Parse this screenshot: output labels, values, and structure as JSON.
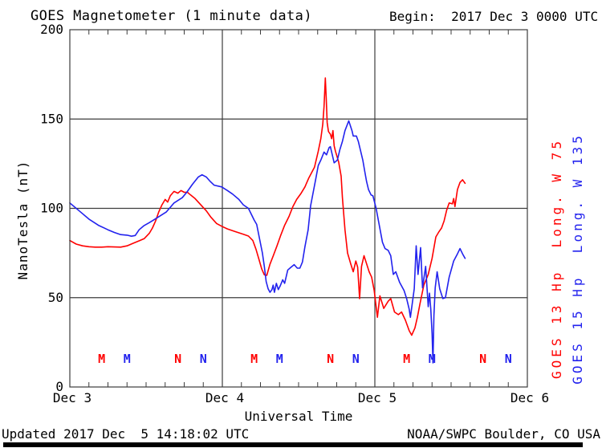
{
  "title": "GOES Magnetometer (1 minute data)",
  "begin_label": "Begin:  2017 Dec 3 0000 UTC",
  "footer": {
    "updated": "Updated 2017 Dec  5 14:18:02 UTC",
    "source": "NOAA/SWPC Boulder, CO USA"
  },
  "right_labels": [
    {
      "text": "GOES 13 Hp  Long. W 75",
      "color": "#ff0000"
    },
    {
      "text": "GOES 15 Hp  Long. W 135",
      "color": "#2222ee"
    }
  ],
  "colors": {
    "goes13": "#ff0000",
    "goes15": "#2222ee",
    "grid": "#3c3c3c",
    "text": "#000000",
    "background": "#ffffff"
  },
  "chart_data": {
    "type": "line",
    "title": "GOES Magnetometer (1 minute data)",
    "xlabel": "Universal Time",
    "ylabel": "NanoTesla (nT)",
    "x_unit": "hours since 2017 Dec 3 0000 UTC",
    "xlim": [
      0,
      72
    ],
    "ylim": [
      0,
      200
    ],
    "grid": true,
    "x_ticks": [
      {
        "h": 0,
        "label": "Dec 3"
      },
      {
        "h": 24,
        "label": "Dec 4"
      },
      {
        "h": 48,
        "label": "Dec 5"
      },
      {
        "h": 72,
        "label": "Dec 6"
      }
    ],
    "y_ticks": [
      0,
      50,
      100,
      150,
      200
    ],
    "minor_tick_hours": 3,
    "legend_position": "right-rotated",
    "series": [
      {
        "name": "GOES 13 Hp",
        "longitude": "W 75",
        "color": "#ff0000",
        "points": [
          [
            0,
            82
          ],
          [
            1,
            80
          ],
          [
            2,
            79
          ],
          [
            3,
            78.5
          ],
          [
            4,
            78.3
          ],
          [
            5,
            78.3
          ],
          [
            6,
            78.5
          ],
          [
            7,
            78.4
          ],
          [
            8,
            78.3
          ],
          [
            9,
            79
          ],
          [
            10,
            80.5
          ],
          [
            11,
            82
          ],
          [
            11.7,
            83
          ],
          [
            12.5,
            86
          ],
          [
            13,
            89
          ],
          [
            13.5,
            93
          ],
          [
            14,
            98
          ],
          [
            14.5,
            102
          ],
          [
            15,
            105
          ],
          [
            15.4,
            103.5
          ],
          [
            15.8,
            107
          ],
          [
            16.4,
            109.5
          ],
          [
            17,
            108.5
          ],
          [
            17.5,
            110
          ],
          [
            18,
            109
          ],
          [
            18.5,
            109
          ],
          [
            19,
            107.5
          ],
          [
            19.7,
            105.5
          ],
          [
            20.6,
            102
          ],
          [
            21.5,
            98.5
          ],
          [
            22.2,
            95
          ],
          [
            23.1,
            91.5
          ],
          [
            23.9,
            90
          ],
          [
            24.8,
            88.5
          ],
          [
            26,
            87
          ],
          [
            27.3,
            85.5
          ],
          [
            28.1,
            84.5
          ],
          [
            28.8,
            82
          ],
          [
            29.3,
            77
          ],
          [
            29.8,
            71
          ],
          [
            30.2,
            66
          ],
          [
            30.6,
            62.8
          ],
          [
            31,
            62.5
          ],
          [
            31.5,
            68.8
          ],
          [
            32,
            73.3
          ],
          [
            32.6,
            79
          ],
          [
            33.2,
            85
          ],
          [
            33.8,
            90.5
          ],
          [
            34.5,
            95.5
          ],
          [
            35.1,
            101
          ],
          [
            35.7,
            105
          ],
          [
            36.4,
            108.5
          ],
          [
            37,
            112
          ],
          [
            37.6,
            117
          ],
          [
            38.5,
            123
          ],
          [
            39.1,
            132
          ],
          [
            39.5,
            139
          ],
          [
            39.8,
            147
          ],
          [
            40,
            157
          ],
          [
            40.2,
            173
          ],
          [
            40.35,
            162
          ],
          [
            40.5,
            148
          ],
          [
            40.7,
            143
          ],
          [
            41,
            141.5
          ],
          [
            41.2,
            139
          ],
          [
            41.4,
            143.5
          ],
          [
            41.6,
            135
          ],
          [
            41.8,
            132
          ],
          [
            42.3,
            126
          ],
          [
            42.7,
            118
          ],
          [
            42.9,
            106
          ],
          [
            43.3,
            88
          ],
          [
            43.7,
            75
          ],
          [
            44.2,
            69
          ],
          [
            44.6,
            64.5
          ],
          [
            45,
            70.5
          ],
          [
            45.3,
            67
          ],
          [
            45.6,
            49.5
          ],
          [
            45.9,
            67.5
          ],
          [
            46.3,
            73.5
          ],
          [
            46.7,
            69
          ],
          [
            47.1,
            64.5
          ],
          [
            47.5,
            61.5
          ],
          [
            47.9,
            54
          ],
          [
            48.4,
            39
          ],
          [
            48.8,
            51
          ],
          [
            49.4,
            44
          ],
          [
            50.1,
            48
          ],
          [
            50.5,
            49.5
          ],
          [
            51.1,
            42
          ],
          [
            51.7,
            40.5
          ],
          [
            52.2,
            42
          ],
          [
            52.8,
            37.5
          ],
          [
            53.4,
            31.5
          ],
          [
            53.8,
            29
          ],
          [
            54.3,
            33
          ],
          [
            54.7,
            39
          ],
          [
            55.1,
            46.5
          ],
          [
            55.7,
            57
          ],
          [
            56.4,
            63
          ],
          [
            57,
            72
          ],
          [
            57.6,
            84
          ],
          [
            58.1,
            87
          ],
          [
            58.5,
            89
          ],
          [
            58.9,
            93
          ],
          [
            59.3,
            99
          ],
          [
            59.7,
            103
          ],
          [
            60.2,
            102.5
          ],
          [
            60.4,
            105.5
          ],
          [
            60.6,
            101
          ],
          [
            61,
            110.5
          ],
          [
            61.4,
            114.5
          ],
          [
            61.8,
            116
          ],
          [
            62.2,
            114
          ]
        ]
      },
      {
        "name": "GOES 15 Hp",
        "longitude": "W 135",
        "color": "#2222ee",
        "points": [
          [
            0,
            103
          ],
          [
            1.5,
            98.5
          ],
          [
            3,
            94
          ],
          [
            4.5,
            90.5
          ],
          [
            6,
            88
          ],
          [
            7,
            86.5
          ],
          [
            8,
            85.3
          ],
          [
            9,
            85
          ],
          [
            9.7,
            84.4
          ],
          [
            10.3,
            84.8
          ],
          [
            10.9,
            88
          ],
          [
            11.7,
            90.4
          ],
          [
            12.5,
            92
          ],
          [
            13.4,
            94
          ],
          [
            14.3,
            96
          ],
          [
            15.2,
            98
          ],
          [
            16.4,
            103
          ],
          [
            17.7,
            106
          ],
          [
            18.4,
            109
          ],
          [
            19.3,
            113.5
          ],
          [
            20.2,
            117.5
          ],
          [
            20.8,
            118.8
          ],
          [
            21.5,
            117.5
          ],
          [
            22.1,
            115
          ],
          [
            22.7,
            113
          ],
          [
            23.9,
            112
          ],
          [
            24.8,
            110
          ],
          [
            25.6,
            108
          ],
          [
            26.6,
            105
          ],
          [
            27.3,
            102
          ],
          [
            28.1,
            100
          ],
          [
            29,
            93.5
          ],
          [
            29.4,
            91
          ],
          [
            29.8,
            84
          ],
          [
            30.3,
            75
          ],
          [
            30.6,
            67.5
          ],
          [
            30.9,
            59
          ],
          [
            31.2,
            55
          ],
          [
            31.5,
            53
          ],
          [
            31.8,
            54.5
          ],
          [
            32,
            57
          ],
          [
            32.2,
            53
          ],
          [
            32.5,
            58
          ],
          [
            32.8,
            54.5
          ],
          [
            33.1,
            56.5
          ],
          [
            33.5,
            60
          ],
          [
            33.8,
            58
          ],
          [
            34.3,
            65.5
          ],
          [
            34.8,
            67
          ],
          [
            35.3,
            68.5
          ],
          [
            35.8,
            66.5
          ],
          [
            36.2,
            66.5
          ],
          [
            36.6,
            70
          ],
          [
            37,
            78.5
          ],
          [
            37.5,
            88
          ],
          [
            37.9,
            101.5
          ],
          [
            38.3,
            109
          ],
          [
            38.7,
            116.5
          ],
          [
            39.1,
            124
          ],
          [
            39.5,
            127
          ],
          [
            40,
            131.5
          ],
          [
            40.4,
            130
          ],
          [
            40.8,
            134
          ],
          [
            41,
            134.5
          ],
          [
            41.6,
            125.5
          ],
          [
            42.1,
            127
          ],
          [
            42.5,
            133
          ],
          [
            42.9,
            137.5
          ],
          [
            43.3,
            143.5
          ],
          [
            43.9,
            149
          ],
          [
            44.4,
            143.5
          ],
          [
            44.6,
            140.5
          ],
          [
            45.1,
            140.5
          ],
          [
            45.4,
            137.5
          ],
          [
            45.7,
            133
          ],
          [
            46.1,
            127
          ],
          [
            46.4,
            121
          ],
          [
            46.7,
            115
          ],
          [
            47,
            110.5
          ],
          [
            47.4,
            107.5
          ],
          [
            47.7,
            107
          ],
          [
            48.2,
            100
          ],
          [
            49.2,
            81
          ],
          [
            49.6,
            77.5
          ],
          [
            50.1,
            76.5
          ],
          [
            50.5,
            73.5
          ],
          [
            50.9,
            63
          ],
          [
            51.3,
            64.5
          ],
          [
            51.9,
            58.5
          ],
          [
            52.6,
            54
          ],
          [
            53,
            49.5
          ],
          [
            53.4,
            43.5
          ],
          [
            53.6,
            39
          ],
          [
            54.2,
            55
          ],
          [
            54.5,
            79
          ],
          [
            54.8,
            63
          ],
          [
            55.2,
            78
          ],
          [
            55.5,
            55.5
          ],
          [
            56,
            67.5
          ],
          [
            56.4,
            45
          ],
          [
            56.6,
            52.5
          ],
          [
            56.8,
            43.5
          ],
          [
            57,
            30
          ],
          [
            57.15,
            13.5
          ],
          [
            57.3,
            40
          ],
          [
            57.5,
            55.5
          ],
          [
            57.8,
            64.5
          ],
          [
            58.2,
            55
          ],
          [
            58.7,
            49.5
          ],
          [
            59.1,
            50
          ],
          [
            59.7,
            61.5
          ],
          [
            60.4,
            70.5
          ],
          [
            61,
            74.5
          ],
          [
            61.4,
            77.5
          ],
          [
            61.8,
            74.5
          ],
          [
            62.2,
            72
          ]
        ]
      }
    ],
    "markers": [
      {
        "hour": 5,
        "label": "M",
        "series": "GOES 13 Hp"
      },
      {
        "hour": 9,
        "label": "M",
        "series": "GOES 15 Hp"
      },
      {
        "hour": 17,
        "label": "N",
        "series": "GOES 13 Hp"
      },
      {
        "hour": 21,
        "label": "N",
        "series": "GOES 15 Hp"
      },
      {
        "hour": 29,
        "label": "M",
        "series": "GOES 13 Hp"
      },
      {
        "hour": 33,
        "label": "M",
        "series": "GOES 15 Hp"
      },
      {
        "hour": 41,
        "label": "N",
        "series": "GOES 13 Hp"
      },
      {
        "hour": 45,
        "label": "N",
        "series": "GOES 15 Hp"
      },
      {
        "hour": 53,
        "label": "M",
        "series": "GOES 13 Hp"
      },
      {
        "hour": 57,
        "label": "M",
        "series": "GOES 15 Hp"
      },
      {
        "hour": 65,
        "label": "N",
        "series": "GOES 13 Hp"
      },
      {
        "hour": 69,
        "label": "N",
        "series": "GOES 15 Hp"
      }
    ]
  }
}
